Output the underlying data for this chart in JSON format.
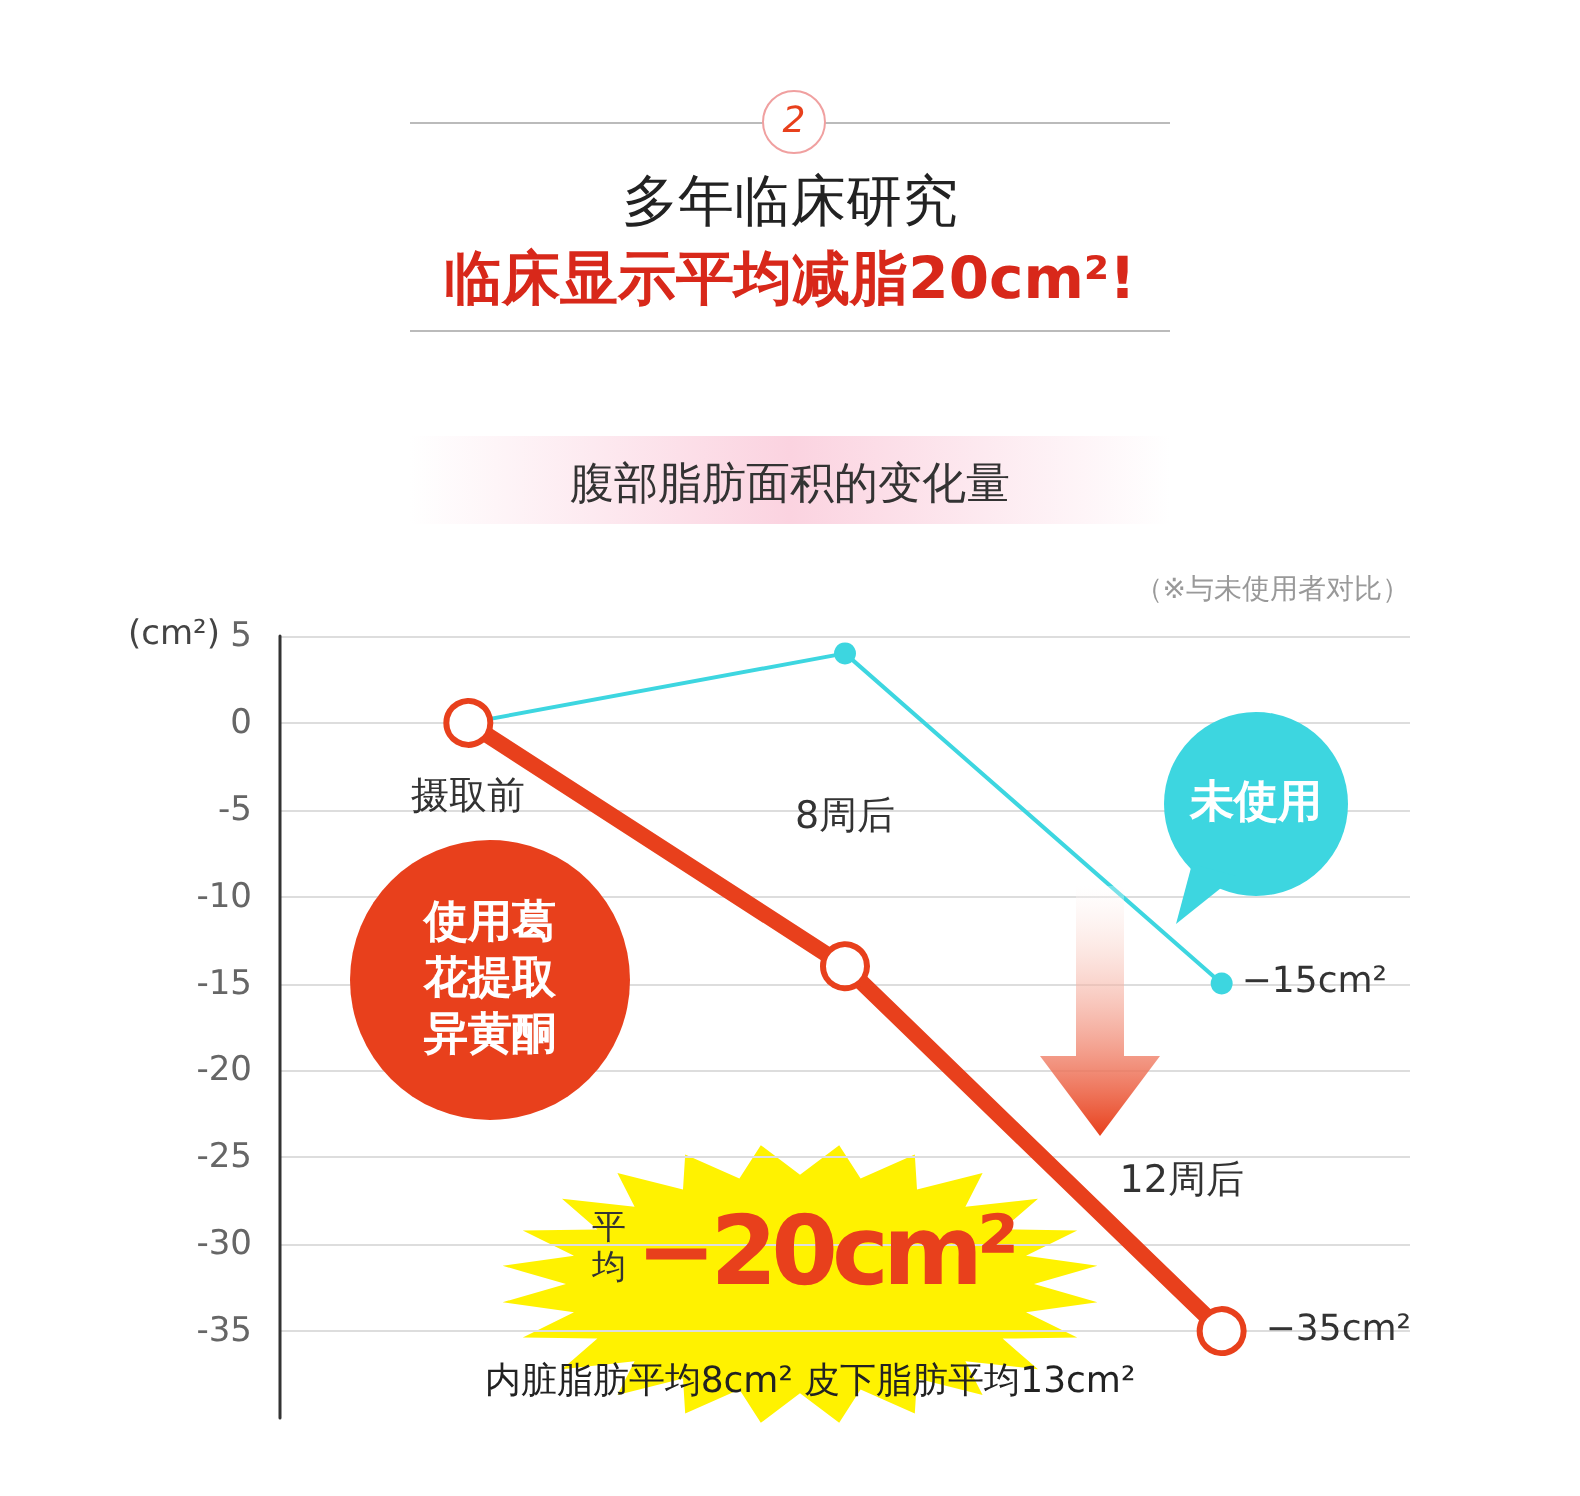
{
  "chart_data": {
    "type": "line",
    "title": "多年临床研究",
    "subtitle": "临床显示平均减脂20cm²!",
    "ylabel": "(cm²)",
    "categories": [
      "摄取前",
      "8周后",
      "12周后"
    ],
    "series": [
      {
        "name": "使用葛花提取异黄酮",
        "color": "#e8401c",
        "values": [
          0,
          -14,
          -35
        ]
      },
      {
        "name": "未使用",
        "color": "#3dd6e0",
        "values": [
          0,
          4,
          -15
        ]
      }
    ],
    "ylim": [
      -40,
      5
    ],
    "yticks": [
      5,
      0,
      -5,
      -10,
      -15,
      -20,
      -25,
      -30,
      -35
    ],
    "grid": "y",
    "legend": false,
    "marker": "circle",
    "line_style": "solid",
    "annotations": [
      "2",
      "腹部脂肪面积的变化量",
      "（※与未使用者对比）",
      {
        "text": "−15cm²",
        "x": "12周后",
        "y": -15
      },
      {
        "text": "−35cm²",
        "x": "12周后",
        "y": -35
      },
      "平均",
      "−20cm²",
      "内脏脂肪平均8cm²  皮下脂肪平均13cm²"
    ]
  }
}
